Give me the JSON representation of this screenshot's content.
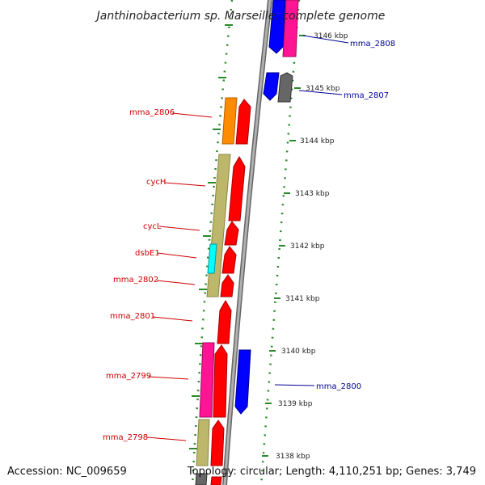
{
  "title": "Janthinobacterium sp. Marseille, complete genome",
  "footer": {
    "accession": "Accession: NC_009659",
    "topology": "Topology: circular; Length: 4,110,251 bp; Genes: 3,749"
  },
  "kbp_labels": [
    "3146 kbp",
    "3145 kbp",
    "3144 kbp",
    "3143 kbp",
    "3142 kbp",
    "3141 kbp",
    "3140 kbp",
    "3139 kbp",
    "3138 kbp"
  ],
  "left_gene_labels": [
    "mma_2806",
    "cycH",
    "cycL",
    "dsbE1",
    "mma_2802",
    "mma_2801",
    "mma_2799",
    "mma_2798"
  ],
  "right_gene_labels": [
    "mma_2808",
    "mma_2807",
    "mma_2800"
  ],
  "colors": {
    "backbone": "#8c8c8c",
    "tick": "#2a8a2a",
    "red_gene": "#ff0000",
    "blue_gene": "#0000ff",
    "pink_gene": "#ff1493",
    "khaki_gene": "#bdb76b",
    "orange_gene": "#ff8c00",
    "cyan_gene": "#00ffff",
    "grey_gene": "#666666",
    "label_red": "#cc0000",
    "label_blue": "#000099"
  }
}
